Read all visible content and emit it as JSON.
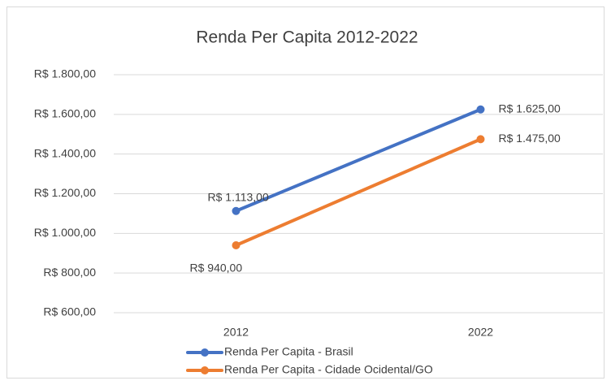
{
  "chart_data": {
    "type": "line",
    "title": "Renda Per Capita 2012-2022",
    "categories": [
      "2012",
      "2022"
    ],
    "series": [
      {
        "name": "Renda Per Capita - Brasil",
        "color": "#4472c4",
        "values": [
          1113,
          1625
        ],
        "value_labels": [
          "R$ 1.113,00",
          "R$ 1.625,00"
        ]
      },
      {
        "name": "Renda Per Capita - Cidade Ocidental/GO",
        "color": "#ed7d31",
        "values": [
          940,
          1475
        ],
        "value_labels": [
          "R$ 940,00",
          "R$ 1.475,00"
        ]
      }
    ],
    "ylim": [
      600,
      1800
    ],
    "yticks": [
      {
        "value": 600,
        "label": "R$ 600,00"
      },
      {
        "value": 800,
        "label": "R$ 800,00"
      },
      {
        "value": 1000,
        "label": "R$ 1.000,00"
      },
      {
        "value": 1200,
        "label": "R$ 1.200,00"
      },
      {
        "value": 1400,
        "label": "R$ 1.400,00"
      },
      {
        "value": 1600,
        "label": "R$ 1.600,00"
      },
      {
        "value": 1800,
        "label": "R$ 1.800,00"
      }
    ],
    "grid": true,
    "legend": "bottom"
  }
}
